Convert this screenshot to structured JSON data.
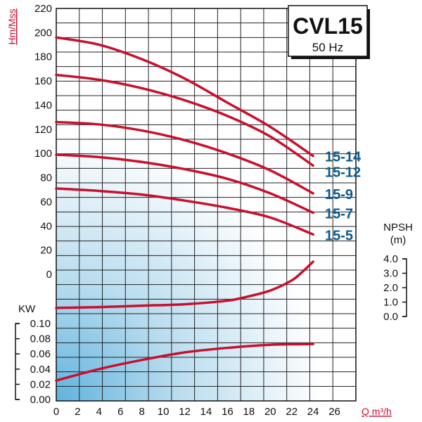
{
  "chart_data": {
    "type": "line",
    "title": "CVL15",
    "subtitle": "50 Hz",
    "xlabel": "Q m³/h",
    "x_ticks": [
      "0",
      "2",
      "4",
      "6",
      "8",
      "10",
      "12",
      "14",
      "16",
      "18",
      "20",
      "22",
      "24",
      "26"
    ],
    "xlim": [
      0,
      28
    ],
    "head": {
      "ylabel": "Hm/Mss",
      "ylim": [
        0,
        220
      ],
      "y_ticks": [
        "220",
        "200",
        "180",
        "160",
        "140",
        "120",
        "100",
        "80",
        "60",
        "40",
        "20",
        "0"
      ],
      "series": [
        {
          "name": "15-14",
          "x": [
            0,
            4,
            8,
            12,
            16,
            20,
            24
          ],
          "y": [
            196,
            190,
            178,
            162,
            142,
            122,
            98
          ]
        },
        {
          "name": "15-12",
          "x": [
            0,
            4,
            8,
            12,
            16,
            20,
            24
          ],
          "y": [
            165,
            161,
            154,
            144,
            131,
            114,
            90
          ]
        },
        {
          "name": "15-9",
          "x": [
            0,
            4,
            8,
            12,
            16,
            20,
            24
          ],
          "y": [
            126,
            124,
            119,
            111,
            100,
            86,
            67
          ]
        },
        {
          "name": "15-7",
          "x": [
            0,
            4,
            8,
            12,
            16,
            20,
            24
          ],
          "y": [
            99,
            97,
            93,
            87,
            79,
            67,
            51
          ]
        },
        {
          "name": "15-5",
          "x": [
            0,
            4,
            8,
            12,
            16,
            20,
            24
          ],
          "y": [
            71,
            69,
            66,
            61,
            55,
            47,
            33
          ]
        }
      ]
    },
    "npsh": {
      "ylabel": "NPSH",
      "unit": "(m)",
      "ylim": [
        0,
        4
      ],
      "y_ticks": [
        "4.0",
        "3.0",
        "2.0",
        "1.0",
        "0.0"
      ],
      "x": [
        0,
        4,
        8,
        12,
        16,
        18,
        20,
        22,
        23,
        24
      ],
      "y": [
        0.6,
        0.65,
        0.75,
        0.85,
        1.1,
        1.4,
        1.8,
        2.5,
        3.1,
        3.8
      ]
    },
    "power": {
      "ylabel": "KW",
      "ylim": [
        0,
        0.1
      ],
      "y_ticks": [
        "0.10",
        "0.08",
        "0.06",
        "0.04",
        "0.02",
        "0.00"
      ],
      "x": [
        0,
        4,
        8,
        12,
        16,
        20,
        24
      ],
      "y": [
        0.025,
        0.04,
        0.052,
        0.062,
        0.068,
        0.072,
        0.073
      ]
    },
    "colors": {
      "curve": "#c8102e",
      "model_label": "#0d5a8c",
      "grid": "#222222"
    }
  }
}
